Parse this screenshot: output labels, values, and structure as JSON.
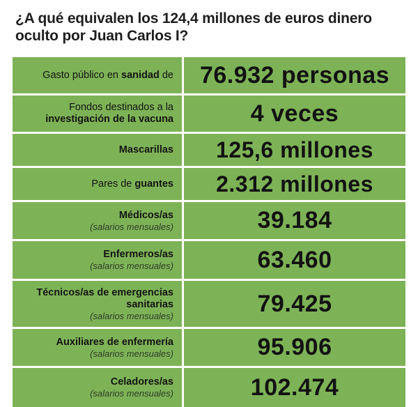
{
  "title": "¿A qué equivalen los 124,4 millones de euros dinero oculto por Juan Carlos I?",
  "rows": [
    {
      "label_pre": "Gasto público en ",
      "label_bold": "sanidad",
      "label_post": " de",
      "label_line2": "",
      "sub": "",
      "value": "76.932 personas"
    },
    {
      "label_pre": "Fondos destinados a la",
      "label_bold": "investigación de la vacuna",
      "label_post": "",
      "label_line2": "",
      "sub": "",
      "value": "4 veces"
    },
    {
      "label_pre": "",
      "label_bold": "Mascarillas",
      "label_post": "",
      "label_line2": "",
      "sub": "",
      "value": "125,6 millones"
    },
    {
      "label_pre": "Pares de ",
      "label_bold": "guantes",
      "label_post": "",
      "label_line2": "",
      "sub": "",
      "value": "2.312 millones"
    },
    {
      "label_pre": "",
      "label_bold": "Médicos/as",
      "label_post": "",
      "label_line2": "",
      "sub": "(salarios mensuales)",
      "value": "39.184"
    },
    {
      "label_pre": "",
      "label_bold": "Enfermeros/as",
      "label_post": "",
      "label_line2": "",
      "sub": "(salarios mensuales)",
      "value": "63.460"
    },
    {
      "label_pre": "",
      "label_bold": "Técnicos/as de emergencias",
      "label_post": "",
      "label_line2": "sanitarias",
      "sub": "(salarios mensuales)",
      "value": "79.425"
    },
    {
      "label_pre": "",
      "label_bold": "Auxiliares de enfermería",
      "label_post": "",
      "label_line2": "",
      "sub": "(salarios mensuales)",
      "value": "95.906"
    },
    {
      "label_pre": "",
      "label_bold": "Celadores/as",
      "label_post": "",
      "label_line2": "",
      "sub": "(salarios mensuales)",
      "value": "102.474"
    }
  ],
  "colors": {
    "cell_green": "#7db356",
    "text": "#141414"
  }
}
